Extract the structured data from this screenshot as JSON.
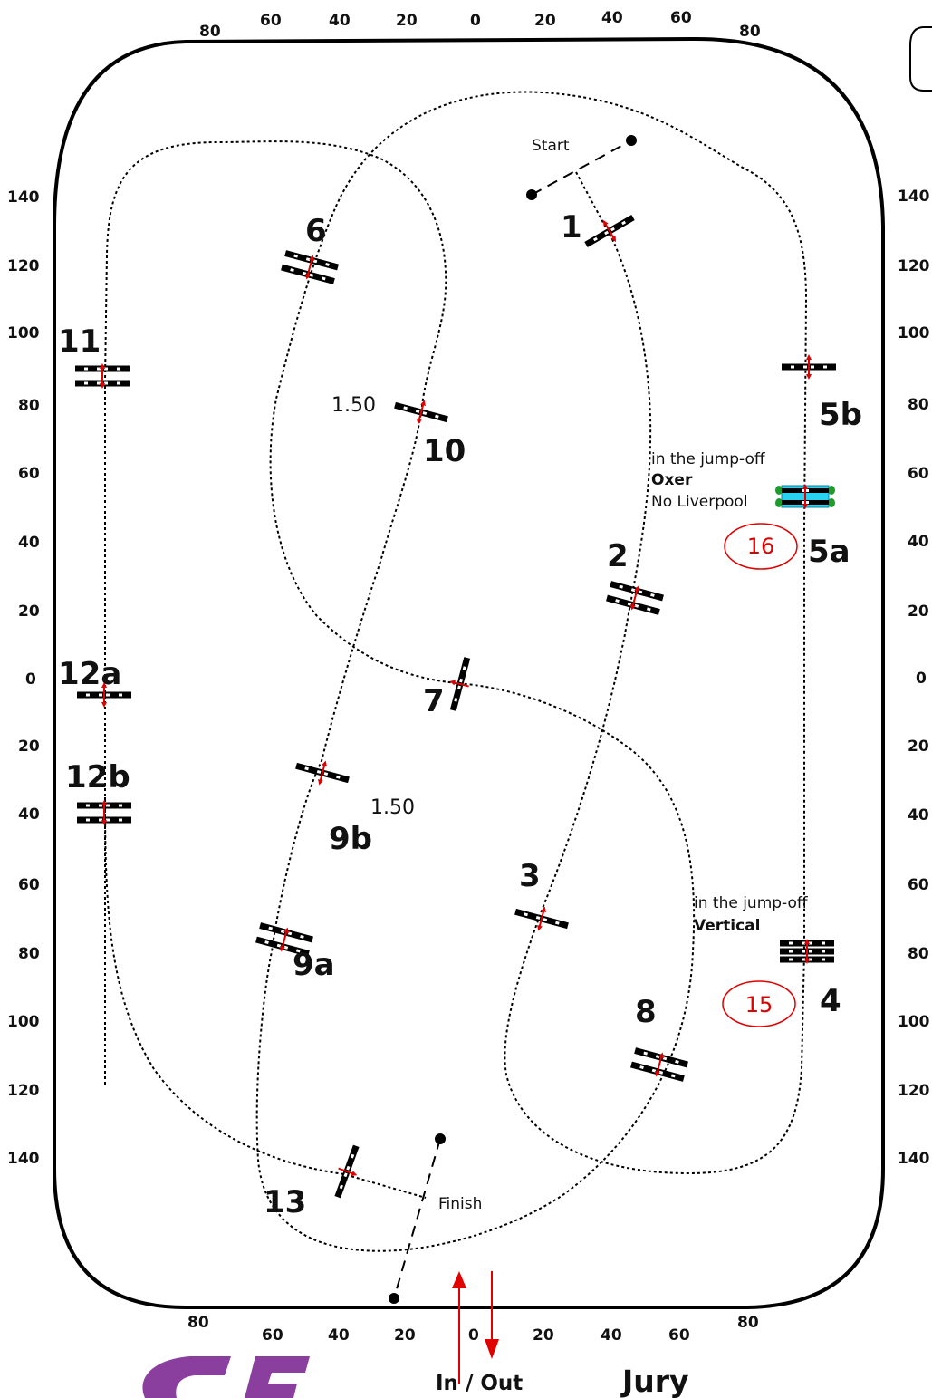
{
  "scale": {
    "top": [
      "80",
      "60",
      "40",
      "20",
      "0",
      "20",
      "40",
      "60",
      "80"
    ],
    "bottom": [
      "80",
      "60",
      "40",
      "20",
      "0",
      "20",
      "40",
      "60",
      "80"
    ],
    "left": [
      "140",
      "120",
      "100",
      "80",
      "60",
      "40",
      "20",
      "0",
      "20",
      "40",
      "60",
      "80",
      "100",
      "120",
      "140"
    ],
    "right": [
      "140",
      "120",
      "100",
      "80",
      "60",
      "40",
      "20",
      "0",
      "20",
      "40",
      "60",
      "80",
      "100",
      "120",
      "140"
    ]
  },
  "jumps": {
    "j1": "1",
    "j2": "2",
    "j3": "3",
    "j4": "4",
    "j5a": "5a",
    "j5b": "5b",
    "j6": "6",
    "j7": "7",
    "j8": "8",
    "j9a": "9a",
    "j9b": "9b",
    "j10": "10",
    "j11": "11",
    "j12a": "12a",
    "j12b": "12b",
    "j13": "13"
  },
  "labels": {
    "start": "Start",
    "finish": "Finish",
    "height_10": "1.50",
    "height_9b": "1.50",
    "jumpoff_oxer_line1": "in the jump-off",
    "jumpoff_oxer_line2": "Oxer",
    "jumpoff_oxer_line3": "No Liverpool",
    "jumpoff_vertical_line1": "in the jump-off",
    "jumpoff_vertical_line2": "Vertical",
    "jumpoff_order_5a": "16",
    "jumpoff_order_4": "15",
    "in_out": "In / Out",
    "jury": "Jury"
  },
  "colors": {
    "path": "#000000",
    "direction": "#e00000",
    "liverpool_water": "#29d3f0",
    "liverpool_flowers": "#1f9a2f",
    "logo": "#8a3f9e"
  }
}
